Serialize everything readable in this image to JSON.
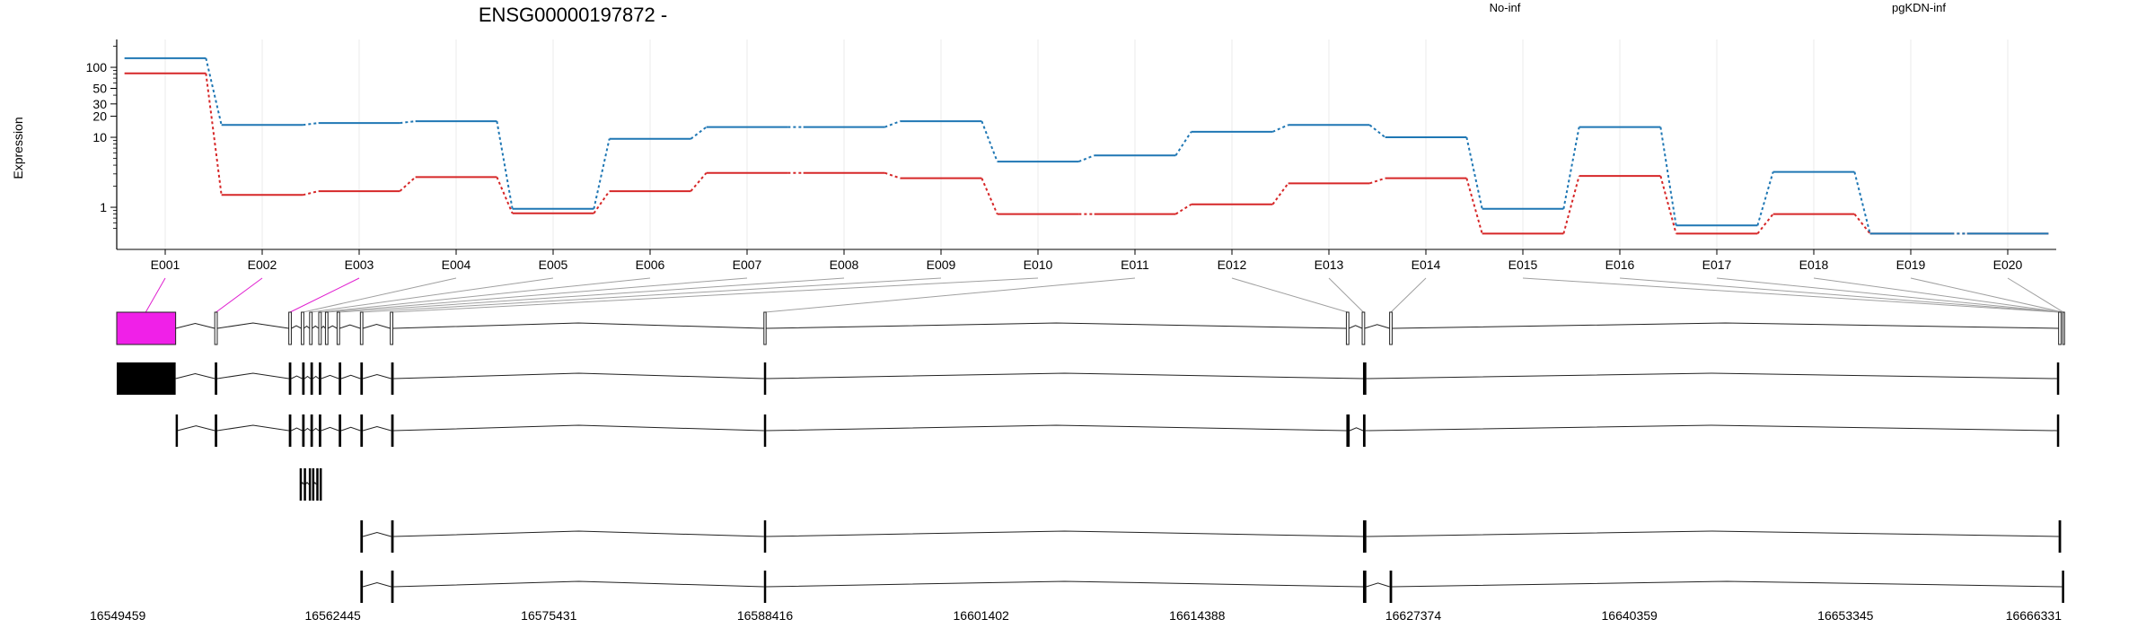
{
  "chart_data": {
    "type": "line",
    "title": "ENSG00000197872 -",
    "xlabel": "",
    "ylabel": "Expression",
    "y_scale": "log",
    "ylim": [
      0.25,
      250
    ],
    "y_ticks": [
      {
        "value": 100,
        "label": "100"
      },
      {
        "value": 50,
        "label": "50"
      },
      {
        "value": 30,
        "label": "30"
      },
      {
        "value": 20,
        "label": "20"
      },
      {
        "value": 10,
        "label": "10"
      },
      {
        "value": 1,
        "label": "1"
      }
    ],
    "y_minor_ticks": [
      0.5,
      0.6,
      0.7,
      0.8,
      0.9,
      2,
      3,
      4,
      5,
      6,
      7,
      8,
      9,
      40,
      60,
      70,
      80,
      90,
      200
    ],
    "grid": "vertical",
    "legend_position": "top",
    "categories": [
      "E001",
      "E002",
      "E003",
      "E004",
      "E005",
      "E006",
      "E007",
      "E008",
      "E009",
      "E010",
      "E011",
      "E012",
      "E013",
      "E014",
      "E015",
      "E016",
      "E017",
      "E018",
      "E019",
      "E020"
    ],
    "series": [
      {
        "name": "No-inf",
        "color": "#d62728",
        "values": [
          82,
          1.5,
          1.7,
          2.7,
          0.82,
          1.7,
          3.1,
          3.1,
          2.6,
          0.8,
          0.8,
          1.1,
          2.2,
          2.6,
          0.42,
          2.8,
          0.42,
          0.8,
          0.42,
          0.42
        ]
      },
      {
        "name": "pgKDN-inf",
        "color": "#1f77b4",
        "values": [
          135,
          15,
          16,
          17,
          0.95,
          9.5,
          14,
          14,
          17,
          4.5,
          5.5,
          12,
          15,
          10,
          0.95,
          14,
          0.55,
          3.2,
          0.42,
          0.42
        ]
      }
    ],
    "exon_link_colors": [
      "#e020d0",
      "#e020d0",
      "#e020d0",
      "#a0a0a0",
      "#a0a0a0",
      "#a0a0a0",
      "#a0a0a0",
      "#a0a0a0",
      "#a0a0a0",
      "#a0a0a0",
      "#a0a0a0",
      "#a0a0a0",
      "#a0a0a0",
      "#a0a0a0",
      "#a0a0a0",
      "#a0a0a0",
      "#a0a0a0",
      "#a0a0a0",
      "#a0a0a0",
      "#a0a0a0"
    ],
    "exon_highlight_color": "#f020e8",
    "genomic_axis": {
      "start": 16549459,
      "end": 16666331,
      "ticks": [
        "16549459",
        "16562445",
        "16575431",
        "16588416",
        "16601402",
        "16614388",
        "16627374",
        "16640359",
        "16653345",
        "16666331"
      ]
    },
    "gene_model": {
      "exons": [
        [
          16549459,
          16553000
        ],
        [
          16555350,
          16555500
        ],
        [
          16559800,
          16559950
        ],
        [
          16560550,
          16560700
        ],
        [
          16561050,
          16561200
        ],
        [
          16561600,
          16561750
        ],
        [
          16562000,
          16562150
        ],
        [
          16562700,
          16562850
        ],
        [
          16564100,
          16564250
        ],
        [
          16565900,
          16566050
        ],
        [
          16588350,
          16588480
        ],
        [
          16623350,
          16623500
        ],
        [
          16624300,
          16624450
        ],
        [
          16625950,
          16626100
        ],
        [
          16666150,
          16666300
        ],
        [
          16666400,
          16666500
        ]
      ]
    },
    "transcripts": [
      {
        "exons": [
          [
            16549459,
            16553000
          ],
          [
            16555350,
            16555500
          ],
          [
            16559800,
            16559950
          ],
          [
            16560600,
            16560750
          ],
          [
            16561100,
            16561250
          ],
          [
            16561600,
            16561750
          ],
          [
            16562800,
            16562950
          ],
          [
            16564100,
            16564250
          ],
          [
            16565950,
            16566100
          ],
          [
            16588350,
            16588480
          ],
          [
            16624350,
            16624550
          ],
          [
            16666050,
            16666150
          ]
        ]
      },
      {
        "exons": [
          [
            16553000,
            16553100
          ],
          [
            16555350,
            16555500
          ],
          [
            16559800,
            16559950
          ],
          [
            16560600,
            16560750
          ],
          [
            16561100,
            16561250
          ],
          [
            16561600,
            16561750
          ],
          [
            16562800,
            16562950
          ],
          [
            16564100,
            16564250
          ],
          [
            16565950,
            16566100
          ],
          [
            16588350,
            16588480
          ],
          [
            16623350,
            16623550
          ],
          [
            16624350,
            16624500
          ],
          [
            16666050,
            16666150
          ]
        ]
      },
      {
        "exons": [
          [
            16560450,
            16560550
          ],
          [
            16560700,
            16560800
          ],
          [
            16561000,
            16561100
          ],
          [
            16561200,
            16561300
          ],
          [
            16561450,
            16561550
          ],
          [
            16561650,
            16561750
          ]
        ]
      },
      {
        "exons": [
          [
            16564100,
            16564250
          ],
          [
            16565950,
            16566100
          ],
          [
            16588350,
            16588480
          ],
          [
            16624350,
            16624550
          ],
          [
            16666150,
            16666300
          ]
        ]
      },
      {
        "exons": [
          [
            16564100,
            16564250
          ],
          [
            16565950,
            16566100
          ],
          [
            16588350,
            16588480
          ],
          [
            16624350,
            16624550
          ],
          [
            16625950,
            16626100
          ],
          [
            16666350,
            16666480
          ]
        ]
      }
    ]
  }
}
